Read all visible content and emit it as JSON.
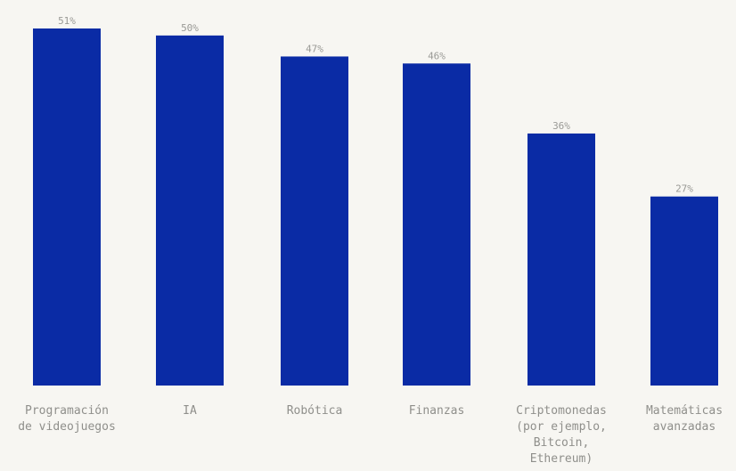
{
  "chart_data": {
    "type": "bar",
    "categories": [
      "Programación de videojuegos",
      "IA",
      "Robótica",
      "Finanzas",
      "Criptomonedas (por ejemplo, Bitcoin, Ethereum)",
      "Matemáticas avanzadas"
    ],
    "category_lines": [
      [
        "Programación",
        "de videojuegos"
      ],
      [
        "IA"
      ],
      [
        "Robótica"
      ],
      [
        "Finanzas"
      ],
      [
        "Criptomonedas",
        "(por ejemplo,",
        "Bitcoin,",
        "Ethereum)"
      ],
      [
        "Matemáticas",
        "avanzadas"
      ]
    ],
    "values": [
      51,
      50,
      47,
      46,
      36,
      27
    ],
    "value_labels": [
      "51%",
      "50%",
      "47%",
      "46%",
      "36%",
      "27%"
    ],
    "ylim": [
      0,
      51
    ],
    "grid": false,
    "bar_color": "#0a2ba5",
    "label_color": "#9a9a96",
    "background": "#f7f6f2"
  }
}
